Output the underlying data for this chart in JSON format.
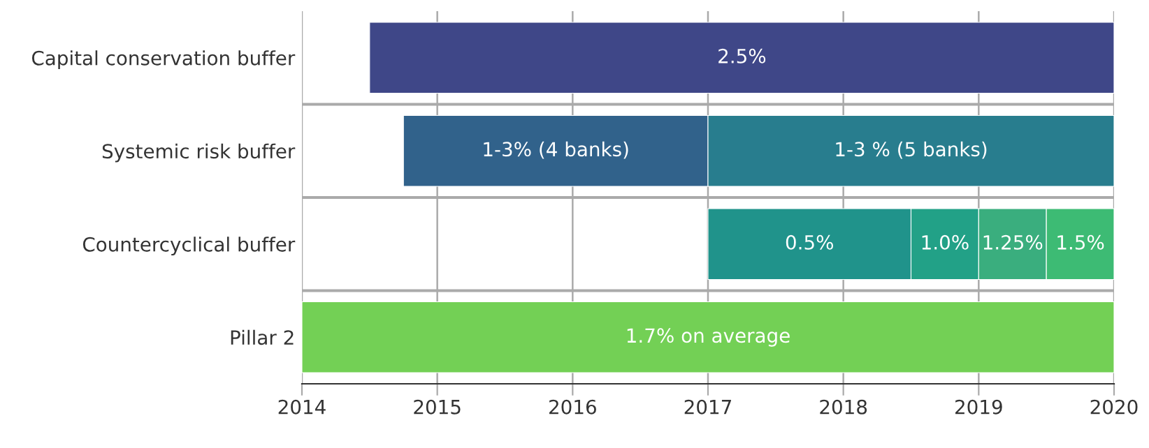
{
  "chart_data": {
    "type": "bar",
    "orientation": "horizontal",
    "categories": [
      "Capital conservation buffer",
      "Systemic risk buffer",
      "Countercyclical buffer",
      "Pillar 2"
    ],
    "series": [
      {
        "color": "#3f4788",
        "values": [
          5.5,
          null,
          null,
          null
        ],
        "base": [
          2014.5,
          null,
          null,
          null
        ]
      },
      {
        "color": "#31628b",
        "values": [
          null,
          2.25,
          null,
          null
        ],
        "base": [
          null,
          2014.75,
          null,
          null
        ]
      },
      {
        "color": "#287d8e",
        "values": [
          null,
          3,
          null,
          null
        ],
        "base": [
          null,
          2017,
          null,
          null
        ]
      },
      {
        "color": "#20938b",
        "values": [
          null,
          null,
          1.5,
          null
        ],
        "base": [
          null,
          null,
          2017,
          null
        ]
      },
      {
        "color": "#22a187",
        "values": [
          null,
          null,
          0.5,
          null
        ],
        "base": [
          null,
          null,
          2018.5,
          null
        ]
      },
      {
        "color": "#3aae7e",
        "values": [
          null,
          null,
          0.5,
          null
        ],
        "base": [
          null,
          null,
          2019,
          null
        ]
      },
      {
        "color": "#3dbb74",
        "values": [
          null,
          null,
          0.5,
          null
        ],
        "base": [
          null,
          null,
          2019.5,
          null
        ]
      },
      {
        "color": "#73d055",
        "values": [
          null,
          null,
          null,
          6
        ],
        "base": [
          null,
          null,
          null,
          2014
        ]
      }
    ],
    "annotations": [
      {
        "text": "2.5%",
        "x": 2017.25,
        "y": "Capital conservation buffer"
      },
      {
        "text": "1-3% (4 banks)",
        "x": 2015.875,
        "y": "Systemic risk buffer"
      },
      {
        "text": "1-3 % (5 banks)",
        "x": 2018.5,
        "y": "Systemic risk buffer"
      },
      {
        "text": "0.5%",
        "x": 2017.75,
        "y": "Countercyclical buffer"
      },
      {
        "text": "1.0%",
        "x": 2018.75,
        "y": "Countercyclical buffer"
      },
      {
        "text": "1.25%",
        "x": 2019.25,
        "y": "Countercyclical buffer"
      },
      {
        "text": "1.5%",
        "x": 2019.75,
        "y": "Countercyclical buffer"
      },
      {
        "text": "1.7% on average",
        "x": 2017,
        "y": "Pillar 2"
      }
    ],
    "xlim": [
      2014,
      2020
    ],
    "xticks": [
      2014,
      2015,
      2016,
      2017,
      2018,
      2019,
      2020
    ],
    "grid": "x",
    "legend": false
  }
}
